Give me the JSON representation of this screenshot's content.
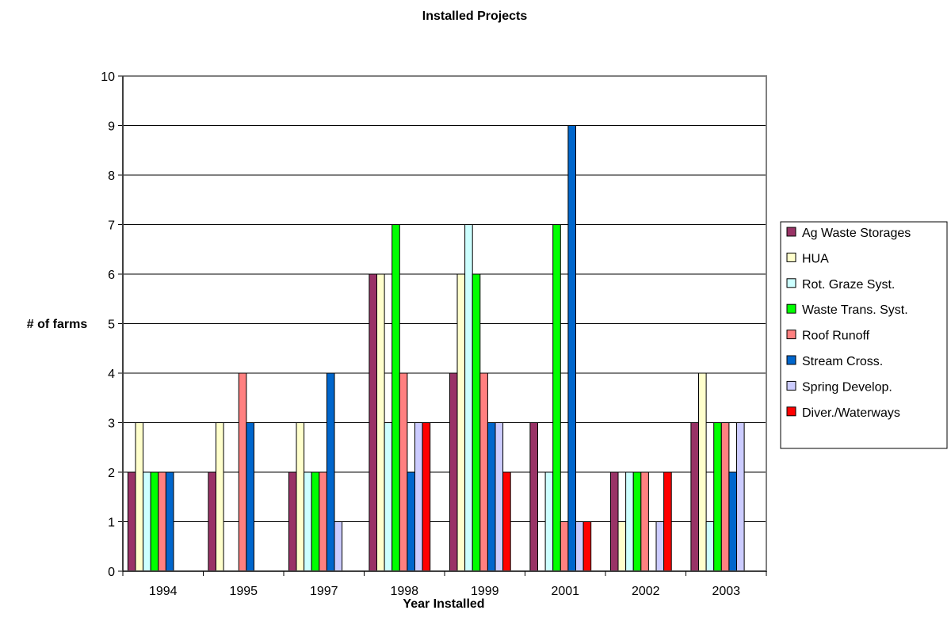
{
  "chart_data": {
    "type": "bar",
    "title": "Installed Projects",
    "xlabel": "Year Installed",
    "ylabel": "# of farms",
    "ylim": [
      0,
      10
    ],
    "yticks": [
      0,
      1,
      2,
      3,
      4,
      5,
      6,
      7,
      8,
      9,
      10
    ],
    "grid": true,
    "legend_position": "right",
    "categories": [
      "1994",
      "1995",
      "1997",
      "1998",
      "1999",
      "2001",
      "2002",
      "2003"
    ],
    "series": [
      {
        "name": "Ag Waste Storages",
        "color": "#993366",
        "values": [
          2,
          2,
          2,
          6,
          4,
          3,
          2,
          3
        ]
      },
      {
        "name": "HUA",
        "color": "#FFFFCC",
        "values": [
          3,
          3,
          3,
          6,
          6,
          0,
          1,
          4
        ]
      },
      {
        "name": "Rot. Graze Syst.",
        "color": "#CCFFFF",
        "values": [
          2,
          0,
          2,
          3,
          7,
          2,
          2,
          1
        ]
      },
      {
        "name": "Waste Trans. Syst.",
        "color": "#00FF00",
        "values": [
          2,
          0,
          2,
          7,
          6,
          7,
          2,
          3
        ]
      },
      {
        "name": "Roof Runoff",
        "color": "#FF8080",
        "values": [
          2,
          4,
          2,
          4,
          4,
          1,
          2,
          3
        ]
      },
      {
        "name": "Stream Cross.",
        "color": "#0066CC",
        "values": [
          2,
          3,
          4,
          2,
          3,
          9,
          0,
          2
        ]
      },
      {
        "name": "Spring Develop.",
        "color": "#CCCCFF",
        "values": [
          0,
          0,
          1,
          3,
          3,
          1,
          1,
          3
        ]
      },
      {
        "name": "Diver./Waterways",
        "color": "#FF0000",
        "values": [
          0,
          0,
          0,
          3,
          2,
          1,
          2,
          0
        ]
      }
    ]
  }
}
